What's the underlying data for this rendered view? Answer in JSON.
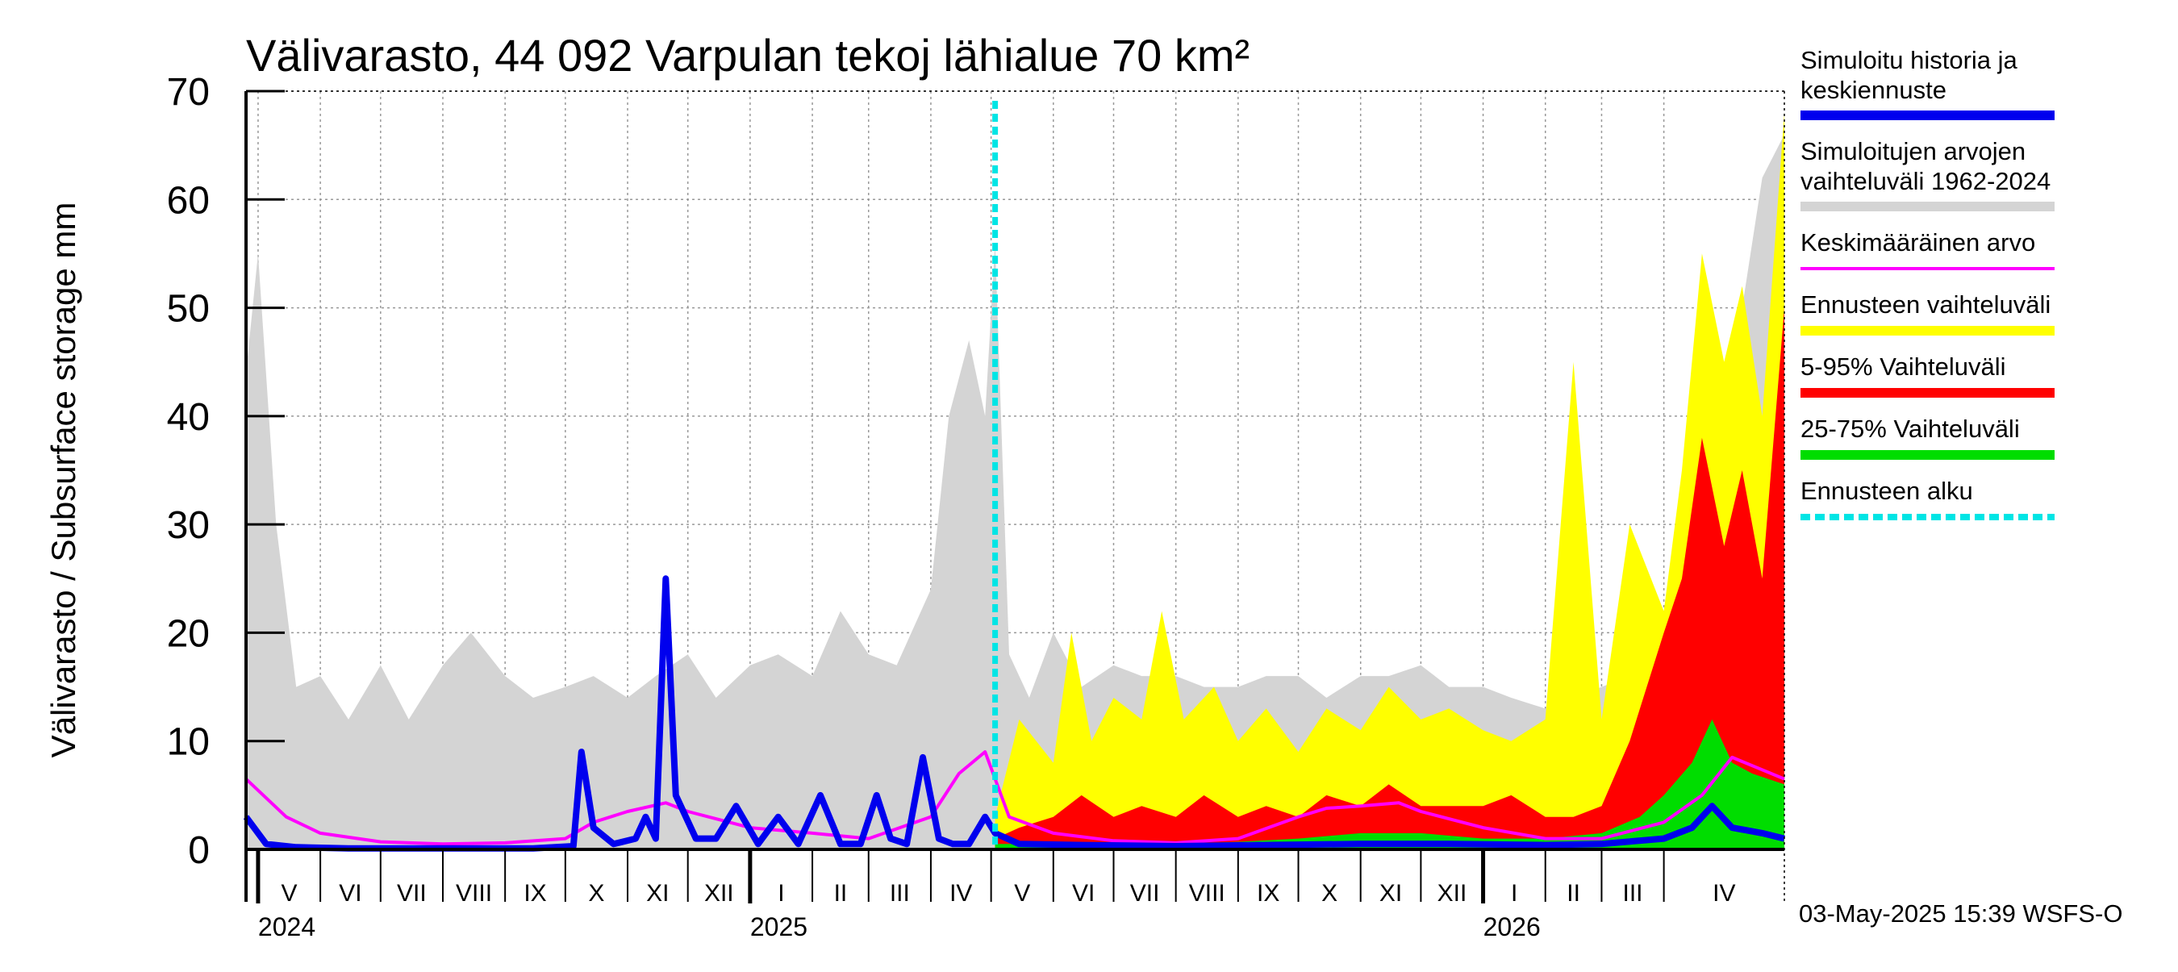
{
  "chart_data": {
    "type": "area",
    "title": "Välivarasto, 44 092 Varpulan tekoj lähialue 70 km²",
    "ylabel": "Välivarasto / Subsurface storage  mm",
    "xlabel": "",
    "ylim": [
      0,
      70
    ],
    "yticks": [
      "0",
      "10",
      "20",
      "30",
      "40",
      "50",
      "60",
      "70"
    ],
    "xlim": [
      "2024-04-25",
      "2026-05-31"
    ],
    "grid": true,
    "forecast_start": "2025-05-03",
    "months": [
      {
        "label": "V",
        "start": "2024-05-01"
      },
      {
        "label": "VI",
        "start": "2024-06-01"
      },
      {
        "label": "VII",
        "start": "2024-07-01"
      },
      {
        "label": "VIII",
        "start": "2024-08-01"
      },
      {
        "label": "IX",
        "start": "2024-09-01"
      },
      {
        "label": "X",
        "start": "2024-10-01"
      },
      {
        "label": "XI",
        "start": "2024-11-01"
      },
      {
        "label": "XII",
        "start": "2024-12-01"
      },
      {
        "label": "I",
        "start": "2025-01-01"
      },
      {
        "label": "II",
        "start": "2025-02-01"
      },
      {
        "label": "III",
        "start": "2025-03-01"
      },
      {
        "label": "IV",
        "start": "2025-04-01"
      },
      {
        "label": "V",
        "start": "2025-05-01"
      },
      {
        "label": "VI",
        "start": "2025-06-01"
      },
      {
        "label": "VII",
        "start": "2025-07-01"
      },
      {
        "label": "VIII",
        "start": "2025-08-01"
      },
      {
        "label": "IX",
        "start": "2025-09-01"
      },
      {
        "label": "X",
        "start": "2025-10-01"
      },
      {
        "label": "XI",
        "start": "2025-11-01"
      },
      {
        "label": "XII",
        "start": "2025-12-01"
      },
      {
        "label": "I",
        "start": "2026-01-01"
      },
      {
        "label": "II",
        "start": "2026-02-01"
      },
      {
        "label": "III",
        "start": "2026-03-01"
      },
      {
        "label": "IV",
        "start": "2026-04-01"
      }
    ],
    "years": [
      {
        "label": "2024",
        "start": "2024-05-01"
      },
      {
        "label": "2025",
        "start": "2025-01-01"
      },
      {
        "label": "2026",
        "start": "2026-01-01"
      }
    ],
    "series": [
      {
        "name": "Simuloitujen arvojen vaihteluväli 1962-2024",
        "color": "#d4d4d4",
        "kind": "band",
        "x": [
          "2024-04-25",
          "2024-05-01",
          "2024-05-10",
          "2024-05-20",
          "2024-06-01",
          "2024-06-15",
          "2024-07-01",
          "2024-07-15",
          "2024-08-01",
          "2024-08-15",
          "2024-09-01",
          "2024-09-15",
          "2024-10-01",
          "2024-10-15",
          "2024-11-01",
          "2024-11-15",
          "2024-12-01",
          "2024-12-15",
          "2025-01-01",
          "2025-01-15",
          "2025-02-01",
          "2025-02-15",
          "2025-03-01",
          "2025-03-15",
          "2025-04-01",
          "2025-04-10",
          "2025-04-20",
          "2025-04-28",
          "2025-05-03",
          "2025-05-10",
          "2025-05-20",
          "2025-06-01",
          "2025-06-15",
          "2025-07-01",
          "2025-07-15",
          "2025-08-01",
          "2025-08-15",
          "2025-09-01",
          "2025-09-15",
          "2025-10-01",
          "2025-10-15",
          "2025-11-01",
          "2025-11-15",
          "2025-12-01",
          "2025-12-15",
          "2026-01-01",
          "2026-01-15",
          "2026-02-01",
          "2026-02-15",
          "2026-03-01",
          "2026-03-15",
          "2026-04-01",
          "2026-04-10",
          "2026-04-20",
          "2026-04-30",
          "2026-05-10",
          "2026-05-20",
          "2026-05-31"
        ],
        "upper": [
          44,
          55,
          30,
          15,
          16,
          12,
          17,
          12,
          17,
          20,
          16,
          14,
          15,
          16,
          14,
          16,
          18,
          14,
          17,
          18,
          16,
          22,
          18,
          17,
          24,
          40,
          47,
          40,
          56,
          18,
          14,
          20,
          15,
          17,
          16,
          16,
          15,
          15,
          16,
          16,
          14,
          16,
          16,
          17,
          15,
          15,
          14,
          13,
          14,
          15,
          16,
          22,
          30,
          38,
          44,
          50,
          62,
          66
        ],
        "lower": [
          0,
          0,
          0,
          0,
          0,
          0,
          0,
          0,
          0,
          0,
          0,
          0,
          0,
          0,
          0,
          0,
          0,
          0,
          0,
          0,
          0,
          0,
          0,
          0,
          0,
          0,
          0,
          0,
          0,
          0,
          0,
          0,
          0,
          0,
          0,
          0,
          0,
          0,
          0,
          0,
          0,
          0,
          0,
          0,
          0,
          0,
          0,
          0,
          0,
          0,
          0,
          0,
          0,
          0,
          0,
          0,
          0,
          0
        ]
      },
      {
        "name": "Ennusteen vaihteluväli",
        "color": "#ffff00",
        "kind": "band",
        "x": [
          "2025-05-03",
          "2025-05-15",
          "2025-06-01",
          "2025-06-10",
          "2025-06-20",
          "2025-07-01",
          "2025-07-15",
          "2025-07-25",
          "2025-08-05",
          "2025-08-20",
          "2025-09-01",
          "2025-09-15",
          "2025-10-01",
          "2025-10-15",
          "2025-11-01",
          "2025-11-15",
          "2025-12-01",
          "2025-12-15",
          "2026-01-01",
          "2026-01-15",
          "2026-02-01",
          "2026-02-15",
          "2026-03-01",
          "2026-03-15",
          "2026-04-01",
          "2026-04-10",
          "2026-04-20",
          "2026-05-01",
          "2026-05-10",
          "2026-05-20",
          "2026-05-31"
        ],
        "upper": [
          3,
          12,
          8,
          20,
          10,
          14,
          12,
          22,
          12,
          15,
          10,
          13,
          9,
          13,
          11,
          15,
          12,
          13,
          11,
          10,
          12,
          45,
          12,
          30,
          22,
          35,
          55,
          45,
          52,
          40,
          68
        ],
        "lower": [
          0,
          0,
          0,
          0,
          0,
          0,
          0,
          0,
          0,
          0,
          0,
          0,
          0,
          0,
          0,
          0,
          0,
          0,
          0,
          0,
          0,
          0,
          0,
          0,
          0,
          0,
          0,
          0,
          0,
          0,
          0
        ]
      },
      {
        "name": "5-95% Vaihteluväli",
        "color": "#ff0000",
        "kind": "band",
        "x": [
          "2025-05-03",
          "2025-05-15",
          "2025-06-01",
          "2025-06-15",
          "2025-07-01",
          "2025-07-15",
          "2025-08-01",
          "2025-08-15",
          "2025-09-01",
          "2025-09-15",
          "2025-10-01",
          "2025-10-15",
          "2025-11-01",
          "2025-11-15",
          "2025-12-01",
          "2025-12-15",
          "2026-01-01",
          "2026-01-15",
          "2026-02-01",
          "2026-02-15",
          "2026-03-01",
          "2026-03-15",
          "2026-04-01",
          "2026-04-10",
          "2026-04-20",
          "2026-05-01",
          "2026-05-10",
          "2026-05-20",
          "2026-05-31"
        ],
        "upper": [
          1,
          2,
          3,
          5,
          3,
          4,
          3,
          5,
          3,
          4,
          3,
          5,
          4,
          6,
          4,
          4,
          4,
          5,
          3,
          3,
          4,
          10,
          20,
          25,
          38,
          28,
          35,
          25,
          50
        ],
        "lower": [
          0,
          0,
          0,
          0,
          0,
          0,
          0,
          0,
          0,
          0,
          0,
          0,
          0,
          0,
          0,
          0,
          0,
          0,
          0,
          0,
          0,
          0,
          0,
          0,
          0,
          0,
          0,
          0,
          0
        ]
      },
      {
        "name": "25-75% Vaihteluväli",
        "color": "#00dd00",
        "kind": "band",
        "x": [
          "2025-05-03",
          "2025-06-01",
          "2025-07-01",
          "2025-08-01",
          "2025-09-01",
          "2025-10-01",
          "2025-11-01",
          "2025-12-01",
          "2026-01-01",
          "2026-02-01",
          "2026-03-01",
          "2026-03-20",
          "2026-04-01",
          "2026-04-15",
          "2026-04-25",
          "2026-05-05",
          "2026-05-15",
          "2026-05-31"
        ],
        "upper": [
          0.5,
          0.5,
          0.5,
          0.5,
          0.7,
          1,
          1.5,
          1.5,
          1,
          1,
          1.5,
          3,
          5,
          8,
          12,
          8,
          7,
          6
        ],
        "lower": [
          0,
          0,
          0,
          0,
          0,
          0,
          0,
          0,
          0,
          0,
          0,
          0,
          0,
          0,
          0,
          0,
          0,
          0
        ]
      },
      {
        "name": "Keskimääräinen arvo",
        "color": "#ff00ff",
        "kind": "line",
        "x": [
          "2024-04-25",
          "2024-05-15",
          "2024-06-01",
          "2024-07-01",
          "2024-08-01",
          "2024-09-01",
          "2024-10-01",
          "2024-10-15",
          "2024-11-01",
          "2024-11-20",
          "2024-12-01",
          "2025-01-01",
          "2025-02-01",
          "2025-03-01",
          "2025-04-01",
          "2025-04-15",
          "2025-04-28",
          "2025-05-10",
          "2025-06-01",
          "2025-07-01",
          "2025-08-01",
          "2025-09-01",
          "2025-10-01",
          "2025-10-15",
          "2025-11-01",
          "2025-11-20",
          "2025-12-01",
          "2026-01-01",
          "2026-02-01",
          "2026-03-01",
          "2026-04-01",
          "2026-04-20",
          "2026-05-05",
          "2026-05-31"
        ],
        "values": [
          6.5,
          3,
          1.5,
          0.7,
          0.5,
          0.6,
          1,
          2.5,
          3.5,
          4.3,
          3.5,
          2,
          1.5,
          1,
          3,
          7,
          9,
          3,
          1.5,
          0.8,
          0.6,
          1,
          3,
          3.8,
          4,
          4.3,
          3.5,
          2,
          1,
          1,
          2.5,
          5,
          8.5,
          6.5
        ]
      },
      {
        "name": "Simuloitu historia ja keskiennuste",
        "color": "#0000ee",
        "kind": "line",
        "x": [
          "2024-04-25",
          "2024-05-05",
          "2024-05-20",
          "2024-06-15",
          "2024-07-15",
          "2024-08-15",
          "2024-09-15",
          "2024-10-05",
          "2024-10-09",
          "2024-10-15",
          "2024-10-25",
          "2024-11-05",
          "2024-11-10",
          "2024-11-15",
          "2024-11-20",
          "2024-11-25",
          "2024-12-05",
          "2024-12-15",
          "2024-12-25",
          "2025-01-05",
          "2025-01-15",
          "2025-01-25",
          "2025-02-05",
          "2025-02-15",
          "2025-02-25",
          "2025-03-05",
          "2025-03-12",
          "2025-03-20",
          "2025-03-28",
          "2025-04-05",
          "2025-04-12",
          "2025-04-20",
          "2025-04-28",
          "2025-05-03",
          "2025-05-15",
          "2025-06-15",
          "2025-08-01",
          "2025-09-15",
          "2025-11-01",
          "2025-12-15",
          "2026-02-01",
          "2026-03-01",
          "2026-04-01",
          "2026-04-15",
          "2026-04-25",
          "2026-05-05",
          "2026-05-20",
          "2026-05-31"
        ],
        "values": [
          3,
          0.5,
          0.2,
          0.1,
          0.1,
          0.1,
          0.1,
          0.3,
          9,
          2,
          0.5,
          1,
          3,
          1,
          25,
          5,
          1,
          1,
          4,
          0.5,
          3,
          0.5,
          5,
          0.5,
          0.5,
          5,
          1,
          0.5,
          8.5,
          1,
          0.5,
          0.5,
          3,
          1.5,
          0.5,
          0.4,
          0.3,
          0.4,
          0.5,
          0.5,
          0.4,
          0.5,
          1,
          2,
          4,
          2,
          1.5,
          1
        ]
      }
    ]
  },
  "legend": [
    {
      "line1": "Simuloitu historia ja",
      "line2": "keskiennuste",
      "color": "#0000ee",
      "style": "thick"
    },
    {
      "line1": "Simuloitujen arvojen",
      "line2": "vaihteluväli 1962-2024",
      "color": "#d4d4d4",
      "style": "thick"
    },
    {
      "line1": "Keskimääräinen arvo",
      "line2": "",
      "color": "#ff00ff",
      "style": "thin"
    },
    {
      "line1": "Ennusteen vaihteluväli",
      "line2": "",
      "color": "#ffff00",
      "style": "thick"
    },
    {
      "line1": "5-95% Vaihteluväli",
      "line2": "",
      "color": "#ff0000",
      "style": "thick"
    },
    {
      "line1": "25-75% Vaihteluväli",
      "line2": "",
      "color": "#00dd00",
      "style": "thick"
    },
    {
      "line1": "Ennusteen alku",
      "line2": "",
      "color": "#00e5e5",
      "style": "dashed"
    }
  ],
  "footer": "03-May-2025 15:39 WSFS-O",
  "colors": {
    "forecast_start_line": "#00e5e5",
    "grid": "#999999",
    "axis": "#000000"
  }
}
